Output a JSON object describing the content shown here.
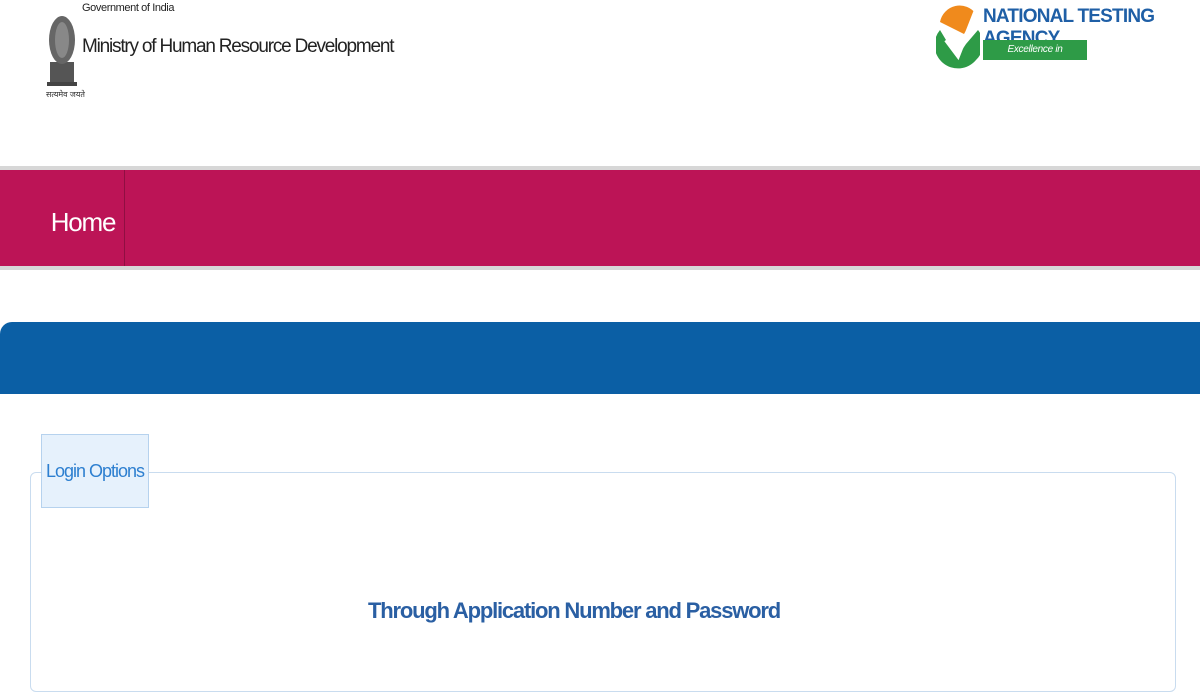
{
  "header": {
    "government": "Government of India",
    "ministry": "Ministry of Human Resource Development",
    "motto": "सत्यमेव जयते",
    "agency": "NATIONAL TESTING AGENCY",
    "agency_tagline": "Excellence in Assessment"
  },
  "nav": {
    "items": [
      "Home"
    ]
  },
  "login": {
    "legend": "Login Options",
    "option": "Through Application Number and Password"
  }
}
